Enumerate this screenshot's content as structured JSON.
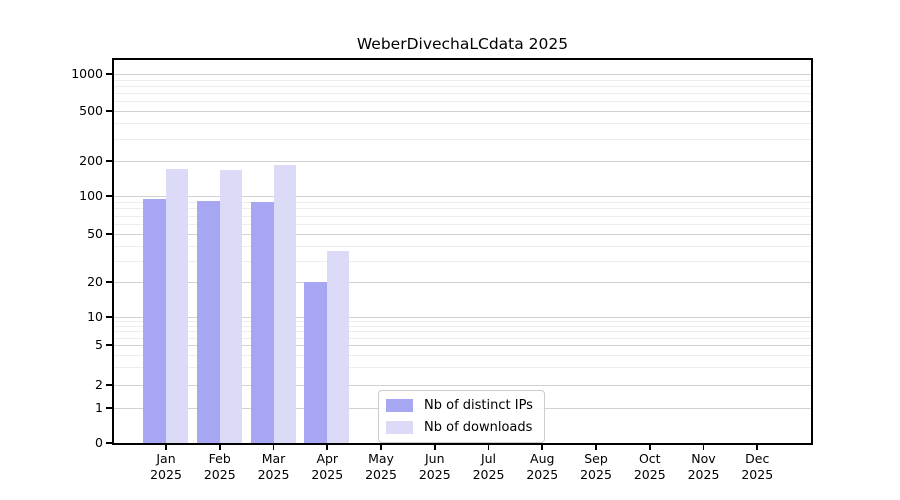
{
  "chart_data": {
    "type": "bar",
    "title": "WeberDivechaLCdata 2025",
    "xlabel": "",
    "ylabel": "",
    "yscale": "symlog",
    "categories": [
      "Jan",
      "Feb",
      "Mar",
      "Apr",
      "May",
      "Jun",
      "Jul",
      "Aug",
      "Sep",
      "Oct",
      "Nov",
      "Dec"
    ],
    "x_tick_second_line": "2025",
    "series": [
      {
        "name": "Nb of distinct IPs",
        "color": "#a6a6f2",
        "values": [
          95,
          92,
          89,
          20,
          0,
          0,
          0,
          0,
          0,
          0,
          0,
          0
        ]
      },
      {
        "name": "Nb of downloads",
        "color": "#dbdbf8",
        "values": [
          171,
          168,
          186,
          36,
          0,
          0,
          0,
          0,
          0,
          0,
          0,
          0
        ]
      }
    ],
    "yticks": [
      0,
      1,
      2,
      5,
      10,
      20,
      50,
      100,
      200,
      500,
      1000
    ],
    "yticks_minor": [
      3,
      4,
      6,
      7,
      8,
      9,
      30,
      40,
      60,
      70,
      80,
      90,
      300,
      400,
      600,
      700,
      800,
      900
    ],
    "ylim": [
      0,
      1400
    ],
    "grid": true,
    "legend": {
      "position": "lower center",
      "labels": [
        "Nb of distinct IPs",
        "Nb of downloads"
      ]
    },
    "colors": {
      "spine": "#000000",
      "major_grid": "#d1d1d1",
      "minor_grid": "#ededed",
      "background": "#ffffff"
    }
  }
}
